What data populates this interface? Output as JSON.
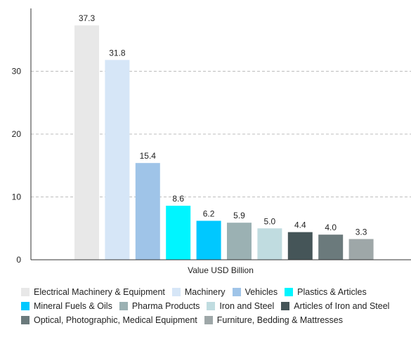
{
  "chart_data": {
    "type": "bar",
    "categories": [
      "Electrical Machinery & Equipment",
      "Machinery",
      "Vehicles",
      "Plastics & Articles",
      "Mineral Fuels & Oils",
      "Pharma Products",
      "Iron and Steel",
      "Articles of Iron and Steel",
      "Optical, Photographic, Medical Equipment",
      "Furniture, Bedding & Mattresses"
    ],
    "values": [
      37.3,
      31.8,
      15.4,
      8.6,
      6.2,
      5.9,
      5.0,
      4.4,
      4.0,
      3.3
    ],
    "value_labels": [
      "37.3",
      "31.8",
      "15.4",
      "8.6",
      "6.2",
      "5.9",
      "5.0",
      "4.4",
      "4.0",
      "3.3"
    ],
    "colors": [
      "#e8e8e8",
      "#d6e6f7",
      "#9fc4e8",
      "#00f5ff",
      "#00c8ff",
      "#9bb1b3",
      "#c0dce0",
      "#455558",
      "#6b7a7c",
      "#9ea7a8"
    ],
    "xlabel": "Value USD Billion",
    "ylabel": "",
    "ylim": [
      0,
      40
    ],
    "yticks": [
      0,
      10,
      20,
      30
    ],
    "ytick_labels": [
      "0",
      "10",
      "20",
      "30"
    ],
    "grid": true,
    "legend": "bottom",
    "legend_rows": [
      [
        0,
        1,
        2,
        3
      ],
      [
        4,
        5,
        6,
        7
      ],
      [
        8,
        9
      ]
    ]
  }
}
